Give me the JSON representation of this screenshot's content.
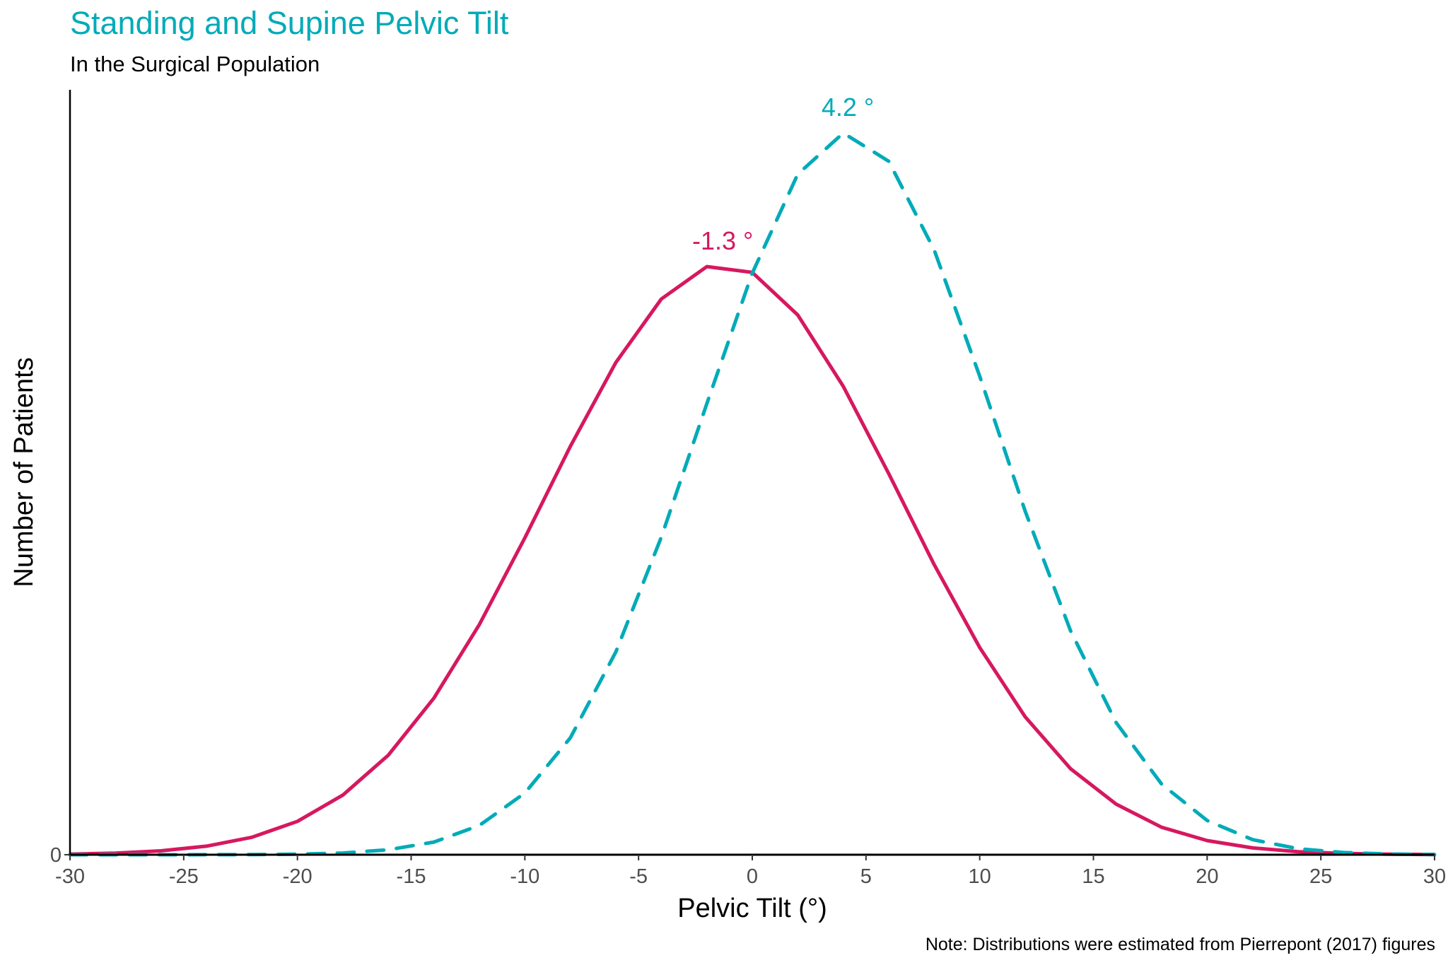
{
  "chart_data": {
    "type": "line",
    "title": "Standing and Supine Pelvic Tilt",
    "subtitle": "In the Surgical Population",
    "xlabel": "Pelvic Tilt (°)",
    "ylabel": "Number of Patients",
    "caption": "Note: Distributions were estimated from Pierrepont (2017) figures",
    "xlim": [
      -30,
      30
    ],
    "ylim": [
      0,
      1.06
    ],
    "x_ticks": [
      "-30",
      "-25",
      "-20",
      "-15",
      "-10",
      "-5",
      "0",
      "5",
      "10",
      "15",
      "20",
      "25",
      "30"
    ],
    "y_ticks": [
      "0"
    ],
    "grid": false,
    "legend": "none",
    "x": [
      -30,
      -28,
      -26,
      -24,
      -22,
      -20,
      -18,
      -16,
      -14,
      -12,
      -10,
      -8,
      -6,
      -4,
      -2,
      0,
      2,
      4,
      6,
      8,
      10,
      12,
      14,
      16,
      18,
      20,
      22,
      24,
      26,
      28,
      30
    ],
    "series": [
      {
        "color": "#d6185f",
        "style": "solid",
        "peak_label": "-1.3 °",
        "peak_x": -1.3,
        "values": [
          0.0009,
          0.0023,
          0.0054,
          0.0119,
          0.0242,
          0.0462,
          0.0827,
          0.138,
          0.217,
          0.319,
          0.439,
          0.566,
          0.682,
          0.77,
          0.815,
          0.807,
          0.748,
          0.649,
          0.528,
          0.402,
          0.287,
          0.191,
          0.119,
          0.07,
          0.038,
          0.0196,
          0.0094,
          0.0042,
          0.0018,
          0.0007,
          0.0003
        ]
      },
      {
        "color": "#00abb8",
        "style": "dashed",
        "peak_label": "4.2 °",
        "peak_x": 4.2,
        "values": [
          0,
          0,
          0,
          0.0001,
          0.0002,
          0.0008,
          0.0024,
          0.0069,
          0.0175,
          0.0406,
          0.0854,
          0.162,
          0.281,
          0.44,
          0.625,
          0.806,
          0.943,
          1.0,
          0.961,
          0.838,
          0.663,
          0.476,
          0.31,
          0.183,
          0.0978,
          0.0474,
          0.0209,
          0.0083,
          0.003,
          0.001,
          0.0003
        ]
      }
    ]
  }
}
